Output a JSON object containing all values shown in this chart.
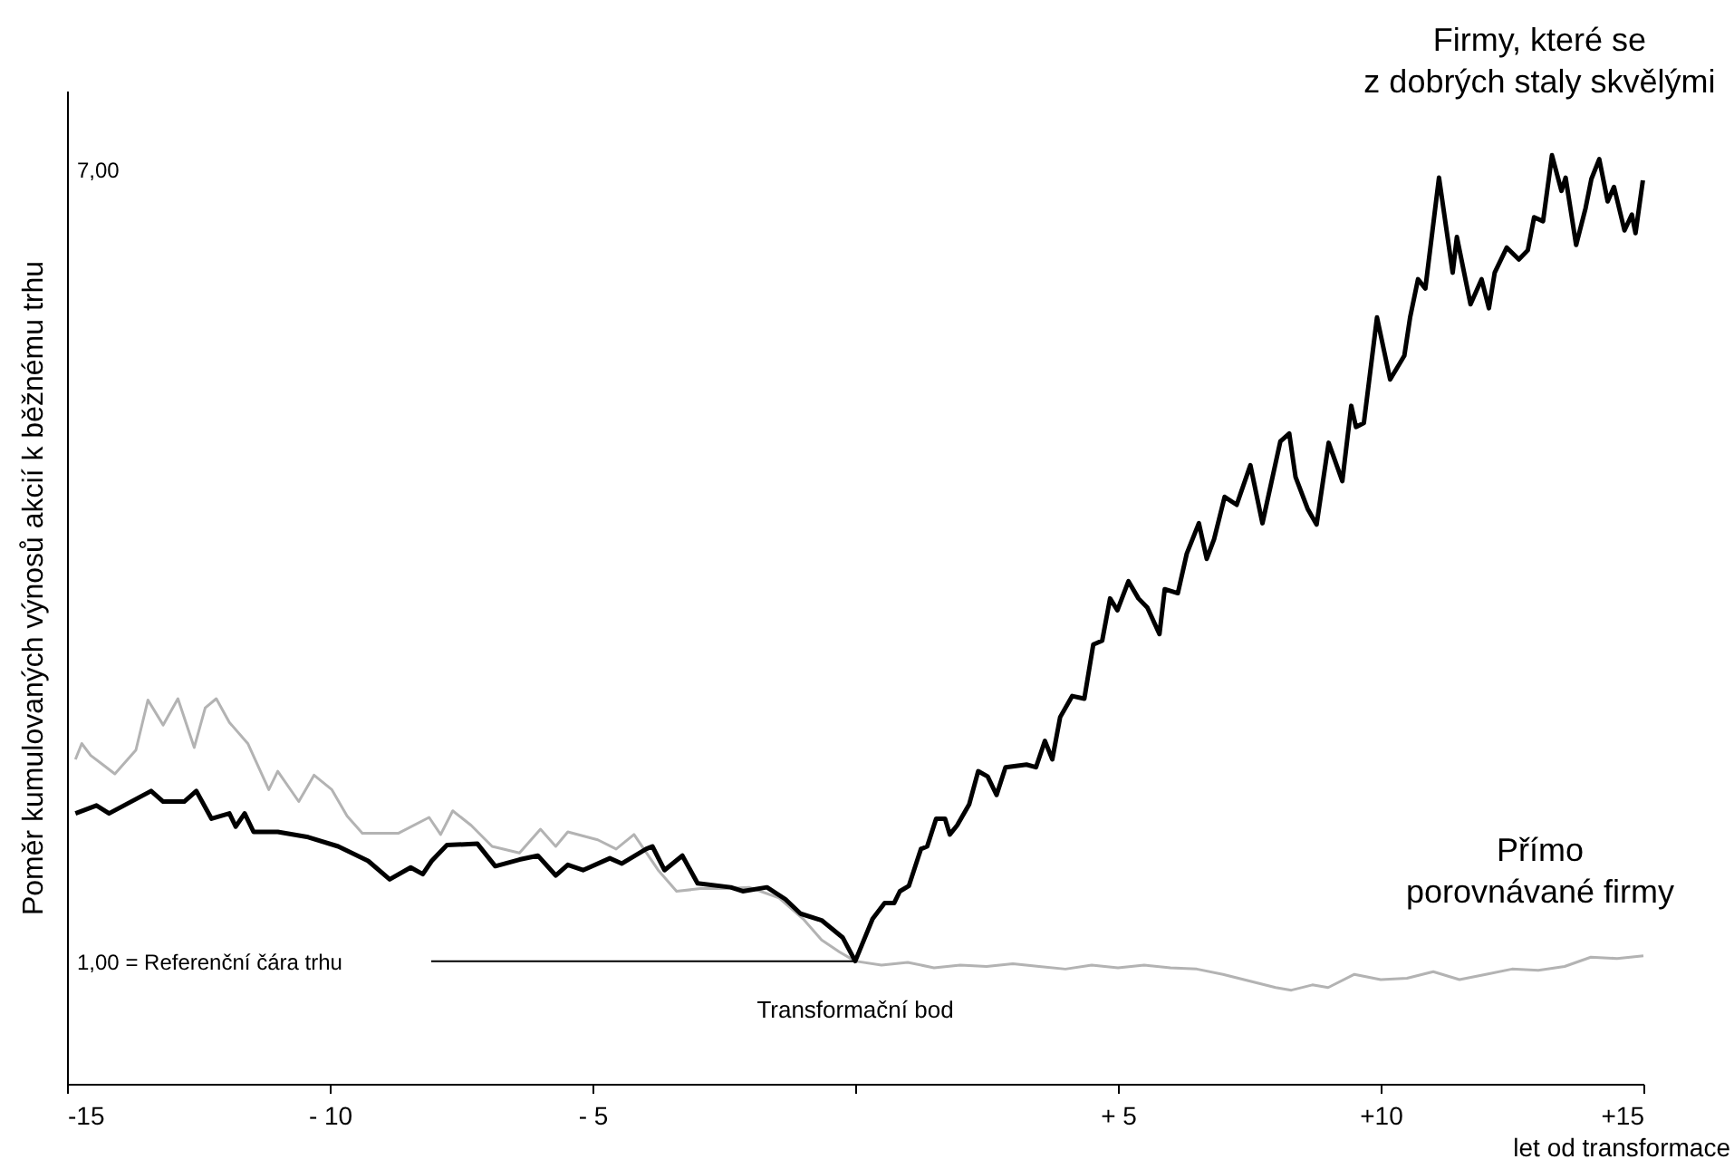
{
  "chart_data": {
    "type": "line",
    "ylabel": "Poměr kumulovaných výnosů akcií k běžnému trhu",
    "xlabel": "let od transformace",
    "xlim": [
      -15,
      15
    ],
    "xticks": [
      -15,
      {
        "value": -10,
        "label": "- 10"
      },
      {
        "value": -5,
        "label": "- 5"
      },
      {
        "value": 0,
        "label": null
      },
      {
        "value": 5,
        "label": "+ 5"
      },
      {
        "value": 10,
        "label": "+10"
      },
      {
        "value": 15,
        "label": "+15"
      }
    ],
    "ylim": [
      0.07,
      7.6
    ],
    "yticks": [
      {
        "value": 1,
        "label": "1,00 = Referenční čára trhu"
      },
      {
        "value": 7,
        "label": "7,00"
      }
    ],
    "grid": false,
    "legend": false,
    "annotations": [
      {
        "text": "Transformační bod",
        "x": 0,
        "y": 1
      }
    ],
    "series": [
      {
        "name": "Přímo porovnávané firmy",
        "color": "#b3b3b3",
        "x": [
          -14.84,
          -14.72,
          -14.55,
          -14.32,
          -14.09,
          -13.69,
          -13.46,
          -13.17,
          -12.89,
          -12.58,
          -12.37,
          -12.16,
          -11.91,
          -11.56,
          -11.16,
          -10.99,
          -10.59,
          -10.3,
          -9.96,
          -9.67,
          -9.38,
          -8.69,
          -8.11,
          -7.89,
          -7.66,
          -7.31,
          -6.91,
          -6.39,
          -5.99,
          -5.7,
          -5.47,
          -4.9,
          -4.55,
          -4.21,
          -3.75,
          -3.4,
          -2.94,
          -2.48,
          -2.02,
          -1.45,
          -0.99,
          -0.64,
          -0.3,
          0,
          0.5,
          1,
          1.5,
          2,
          2.5,
          3,
          3.5,
          4,
          4.5,
          5,
          5.5,
          6,
          6.5,
          7,
          7.5,
          8,
          8.3,
          8.7,
          9,
          9.5,
          10,
          10.5,
          11,
          11.5,
          12,
          12.5,
          13,
          13.5,
          14,
          14.5,
          15
        ],
        "values": [
          2.53,
          2.65,
          2.56,
          2.49,
          2.42,
          2.6,
          2.98,
          2.79,
          2.99,
          2.62,
          2.92,
          2.99,
          2.81,
          2.65,
          2.3,
          2.44,
          2.21,
          2.41,
          2.3,
          2.1,
          1.97,
          1.97,
          2.09,
          1.96,
          2.14,
          2.03,
          1.87,
          1.82,
          2.0,
          1.87,
          1.98,
          1.92,
          1.85,
          1.96,
          1.69,
          1.53,
          1.55,
          1.55,
          1.56,
          1.48,
          1.32,
          1.16,
          1.07,
          1.0,
          0.97,
          0.99,
          0.95,
          0.97,
          0.96,
          0.98,
          0.96,
          0.94,
          0.97,
          0.95,
          0.97,
          0.95,
          0.94,
          0.9,
          0.85,
          0.8,
          0.78,
          0.82,
          0.8,
          0.9,
          0.86,
          0.87,
          0.92,
          0.86,
          0.9,
          0.94,
          0.93,
          0.96,
          1.03,
          1.02,
          1.04
        ]
      },
      {
        "name": "Firmy, které se z dobrých staly skvělými",
        "color": "#000000",
        "x": [
          -14.84,
          -14.44,
          -14.2,
          -13.4,
          -13.17,
          -12.77,
          -12.54,
          -12.25,
          -11.91,
          -11.79,
          -11.62,
          -11.45,
          -10.99,
          -10.41,
          -9.84,
          -9.27,
          -8.86,
          -8.46,
          -8.23,
          -8.06,
          -7.77,
          -7.19,
          -6.85,
          -6.39,
          -6.04,
          -5.7,
          -5.47,
          -5.18,
          -4.67,
          -4.44,
          -3.98,
          -3.86,
          -3.63,
          -3.29,
          -3.0,
          -2.37,
          -2.14,
          -1.68,
          -1.33,
          -1.04,
          -0.64,
          -0.24,
          0,
          0.33,
          0.56,
          0.74,
          0.85,
          1.02,
          1.25,
          1.37,
          1.54,
          1.71,
          1.8,
          1.94,
          2.17,
          2.34,
          2.52,
          2.69,
          2.86,
          3.26,
          3.44,
          3.61,
          3.75,
          3.9,
          4.13,
          4.36,
          4.53,
          4.7,
          4.85,
          4.99,
          5.2,
          5.39,
          5.56,
          5.79,
          5.89,
          6.14,
          6.31,
          6.54,
          6.69,
          6.83,
          7.03,
          7.26,
          7.52,
          7.75,
          8.09,
          8.26,
          8.38,
          8.61,
          8.78,
          9.01,
          9.27,
          9.44,
          9.53,
          9.68,
          9.93,
          10.18,
          10.45,
          10.56,
          10.71,
          10.85,
          11.11,
          11.37,
          11.45,
          11.71,
          11.92,
          12.06,
          12.17,
          12.4,
          12.63,
          12.8,
          12.92,
          13.09,
          13.26,
          13.44,
          13.52,
          13.72,
          13.9,
          14.01,
          14.16,
          14.32,
          14.44,
          14.64,
          14.78,
          14.85,
          14.99
        ],
        "values": [
          2.12,
          2.18,
          2.12,
          2.29,
          2.21,
          2.21,
          2.29,
          2.08,
          2.12,
          2.02,
          2.12,
          1.98,
          1.98,
          1.94,
          1.87,
          1.76,
          1.62,
          1.71,
          1.66,
          1.76,
          1.88,
          1.89,
          1.72,
          1.77,
          1.8,
          1.65,
          1.73,
          1.69,
          1.78,
          1.74,
          1.85,
          1.87,
          1.69,
          1.8,
          1.59,
          1.56,
          1.53,
          1.56,
          1.47,
          1.36,
          1.31,
          1.18,
          1.0,
          1.32,
          1.44,
          1.44,
          1.53,
          1.57,
          1.85,
          1.87,
          2.08,
          2.08,
          1.96,
          2.03,
          2.19,
          2.44,
          2.4,
          2.26,
          2.47,
          2.49,
          2.47,
          2.67,
          2.53,
          2.85,
          3.01,
          2.99,
          3.4,
          3.43,
          3.75,
          3.66,
          3.88,
          3.75,
          3.68,
          3.48,
          3.82,
          3.79,
          4.09,
          4.32,
          4.05,
          4.2,
          4.52,
          4.46,
          4.76,
          4.32,
          4.94,
          5.0,
          4.67,
          4.43,
          4.31,
          4.93,
          4.64,
          5.21,
          5.05,
          5.08,
          5.88,
          5.41,
          5.59,
          5.88,
          6.17,
          6.1,
          6.94,
          6.22,
          6.49,
          5.98,
          6.17,
          5.95,
          6.22,
          6.41,
          6.32,
          6.39,
          6.64,
          6.61,
          7.11,
          6.84,
          6.94,
          6.43,
          6.71,
          6.93,
          7.08,
          6.76,
          6.87,
          6.54,
          6.66,
          6.52,
          6.92
        ]
      },
      {
        "color": "#000000",
        "x": [
          -8.07,
          0
        ],
        "values": [
          1,
          1
        ]
      }
    ]
  }
}
